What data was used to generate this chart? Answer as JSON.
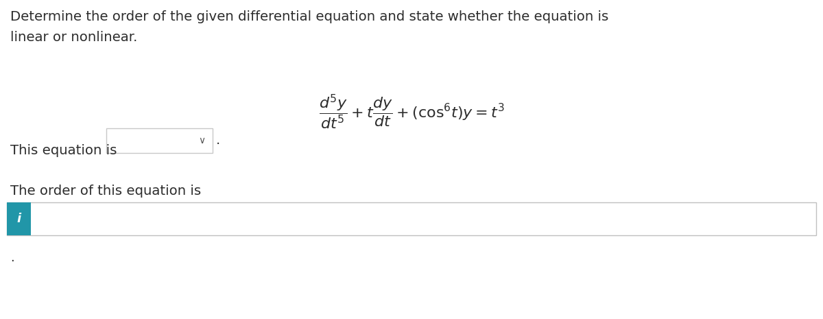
{
  "title_line1": "Determine the order of the given differential equation and state whether the equation is",
  "title_line2": "linear or nonlinear.",
  "equation": "$\\dfrac{d^5y}{dt^5} + t\\dfrac{dy}{dt} + (\\mathrm{cos}^6 t)y = t^3$",
  "label1": "This equation is",
  "label2": "The order of this equation is",
  "bg_color": "#ffffff",
  "text_color": "#2d2d2d",
  "box_border_color": "#c8c8c8",
  "info_box_bg": "#2196a8",
  "dropdown_chevron": "∨",
  "figsize": [
    12.0,
    4.65
  ],
  "dpi": 100
}
